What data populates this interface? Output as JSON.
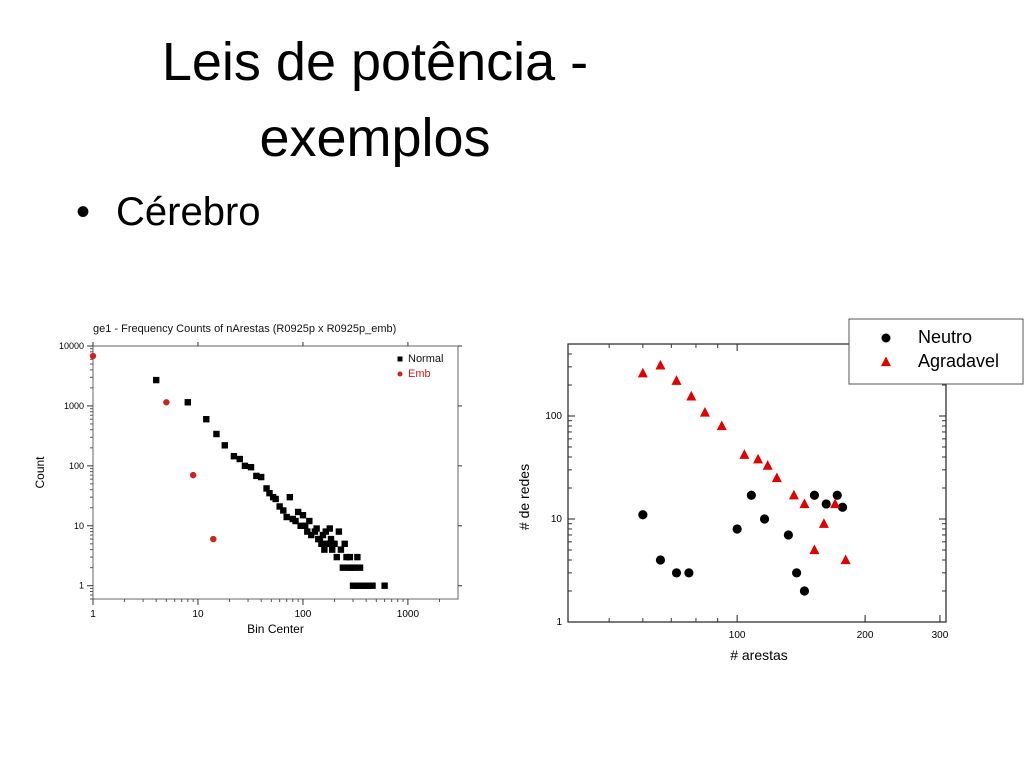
{
  "slide": {
    "title_line1": "Leis de potência -",
    "title_line2": "exemplos",
    "bullet_marker": "•",
    "bullet_text": "Cérebro"
  },
  "chart_data": [
    {
      "type": "scatter",
      "title": "ge1 - Frequency Counts of nArestas (R0925p x R0925p_emb)",
      "xlabel": "Bin Center",
      "ylabel": "Count",
      "x_scale": "log",
      "y_scale": "log",
      "xlim": [
        1,
        3000
      ],
      "ylim": [
        0.6,
        10000
      ],
      "x_ticks": [
        {
          "v": 1,
          "label": "1"
        },
        {
          "v": 10,
          "label": "10"
        },
        {
          "v": 100,
          "label": "100"
        },
        {
          "v": 1000,
          "label": "1000"
        }
      ],
      "y_ticks": [
        {
          "v": 1,
          "label": "1"
        },
        {
          "v": 10,
          "label": "10"
        },
        {
          "v": 100,
          "label": "100"
        },
        {
          "v": 1000,
          "label": "1000"
        },
        {
          "v": 10000,
          "label": "10000"
        }
      ],
      "legend_position": "top-right",
      "series": [
        {
          "name": "Normal",
          "marker": "square",
          "color": "#000000",
          "points": [
            [
              4,
              2700
            ],
            [
              8,
              1150
            ],
            [
              12,
              600
            ],
            [
              15,
              340
            ],
            [
              18,
              220
            ],
            [
              22,
              145
            ],
            [
              25,
              130
            ],
            [
              28,
              100
            ],
            [
              32,
              95
            ],
            [
              36,
              68
            ],
            [
              40,
              65
            ],
            [
              45,
              42
            ],
            [
              48,
              35
            ],
            [
              52,
              30
            ],
            [
              55,
              28
            ],
            [
              60,
              21
            ],
            [
              65,
              18
            ],
            [
              70,
              14
            ],
            [
              75,
              30
            ],
            [
              80,
              13
            ],
            [
              85,
              12
            ],
            [
              90,
              17
            ],
            [
              95,
              10
            ],
            [
              100,
              15
            ],
            [
              105,
              10
            ],
            [
              110,
              8
            ],
            [
              115,
              12
            ],
            [
              120,
              7
            ],
            [
              130,
              8
            ],
            [
              135,
              9
            ],
            [
              140,
              6
            ],
            [
              145,
              6
            ],
            [
              150,
              5
            ],
            [
              155,
              7
            ],
            [
              160,
              4
            ],
            [
              165,
              8
            ],
            [
              170,
              5
            ],
            [
              175,
              5
            ],
            [
              180,
              9
            ],
            [
              185,
              6
            ],
            [
              190,
              4
            ],
            [
              195,
              5
            ],
            [
              200,
              5
            ],
            [
              210,
              3
            ],
            [
              220,
              8
            ],
            [
              230,
              4
            ],
            [
              240,
              2
            ],
            [
              250,
              5
            ],
            [
              260,
              3
            ],
            [
              270,
              2
            ],
            [
              280,
              3
            ],
            [
              290,
              2
            ],
            [
              300,
              1
            ],
            [
              310,
              2
            ],
            [
              320,
              1
            ],
            [
              330,
              3
            ],
            [
              340,
              1
            ],
            [
              350,
              2
            ],
            [
              360,
              1
            ],
            [
              380,
              1
            ],
            [
              400,
              1
            ],
            [
              430,
              1
            ],
            [
              460,
              1
            ],
            [
              600,
              1
            ]
          ]
        },
        {
          "name": "Emb",
          "marker": "circle",
          "color": "#cc2222",
          "points": [
            [
              1,
              6800
            ],
            [
              5,
              1150
            ],
            [
              9,
              70
            ],
            [
              14,
              6
            ]
          ]
        }
      ]
    },
    {
      "type": "scatter",
      "xlabel": "# arestas",
      "ylabel": "# de redes",
      "x_scale": "log",
      "y_scale": "log",
      "xlim": [
        40,
        310
      ],
      "ylim": [
        1,
        500
      ],
      "x_ticks": [
        {
          "v": 100,
          "label": "100"
        },
        {
          "v": 200,
          "label": "200"
        },
        {
          "v": 300,
          "label": "300"
        }
      ],
      "y_ticks": [
        {
          "v": 1,
          "label": "1"
        },
        {
          "v": 10,
          "label": "10"
        },
        {
          "v": 100,
          "label": "100"
        }
      ],
      "legend_position": "top-right",
      "series": [
        {
          "name": "Neutro",
          "marker": "circle",
          "color": "#000000",
          "points": [
            [
              60,
              11
            ],
            [
              66,
              4
            ],
            [
              72,
              3
            ],
            [
              77,
              3
            ],
            [
              100,
              8
            ],
            [
              108,
              17
            ],
            [
              116,
              10
            ],
            [
              132,
              7
            ],
            [
              138,
              3
            ],
            [
              144,
              2
            ],
            [
              152,
              17
            ],
            [
              162,
              14
            ],
            [
              172,
              17
            ],
            [
              177,
              13
            ]
          ]
        },
        {
          "name": "Agradavel",
          "marker": "triangle",
          "color": "#e00000",
          "points": [
            [
              60,
              260
            ],
            [
              66,
              310
            ],
            [
              72,
              220
            ],
            [
              78,
              155
            ],
            [
              84,
              108
            ],
            [
              92,
              80
            ],
            [
              104,
              42
            ],
            [
              112,
              38
            ],
            [
              118,
              33
            ],
            [
              124,
              25
            ],
            [
              136,
              17
            ],
            [
              144,
              14
            ],
            [
              152,
              5
            ],
            [
              160,
              9
            ],
            [
              170,
              14
            ],
            [
              180,
              4
            ]
          ]
        }
      ]
    }
  ]
}
